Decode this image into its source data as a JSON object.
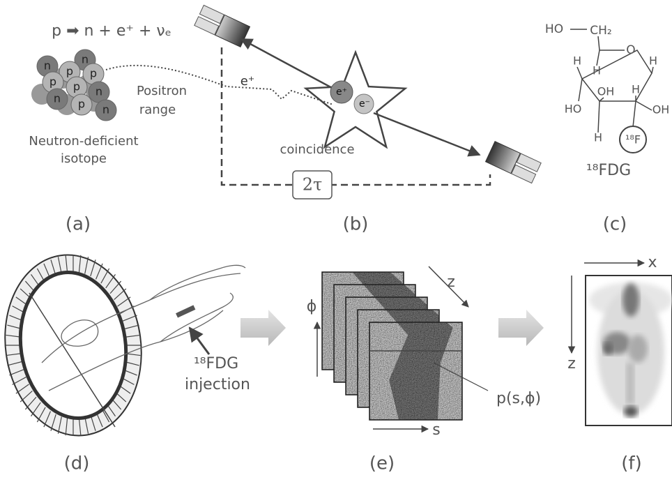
{
  "panel_a": {
    "label": "(a)",
    "equation": "p ➡ n + e⁺ + νₑ",
    "nucleons": [
      "n",
      "n",
      "p",
      "p",
      "p",
      "p",
      "n",
      "n",
      "p",
      "n"
    ],
    "positron_range": [
      "Positron",
      "range"
    ],
    "isotope": [
      "Neutron-deficient",
      "isotope"
    ]
  },
  "panel_b": {
    "label": "(b)",
    "positron": "e⁺",
    "annihilation": [
      "e⁺",
      "e⁻"
    ],
    "coincidence": "coincidence",
    "window": "2τ"
  },
  "panel_c": {
    "label": "(c)",
    "hydroxymethyl": [
      "HO",
      "CH₂"
    ],
    "ring_oxygen": "O",
    "substituents": [
      "H",
      "H",
      "H",
      "OH",
      "H",
      "OH",
      "HO",
      "H"
    ],
    "fluorine": "¹⁸F",
    "name": "¹⁸FDG"
  },
  "panel_d": {
    "label": "(d)",
    "injection": [
      "¹⁸FDG",
      "injection"
    ]
  },
  "panel_e": {
    "label": "(e)",
    "axes": {
      "z": "z",
      "phi": "ϕ",
      "s": "s"
    },
    "sinogram": "p(s,ϕ)"
  },
  "panel_f": {
    "label": "(f)",
    "axes": {
      "x": "x",
      "z": "z"
    }
  }
}
